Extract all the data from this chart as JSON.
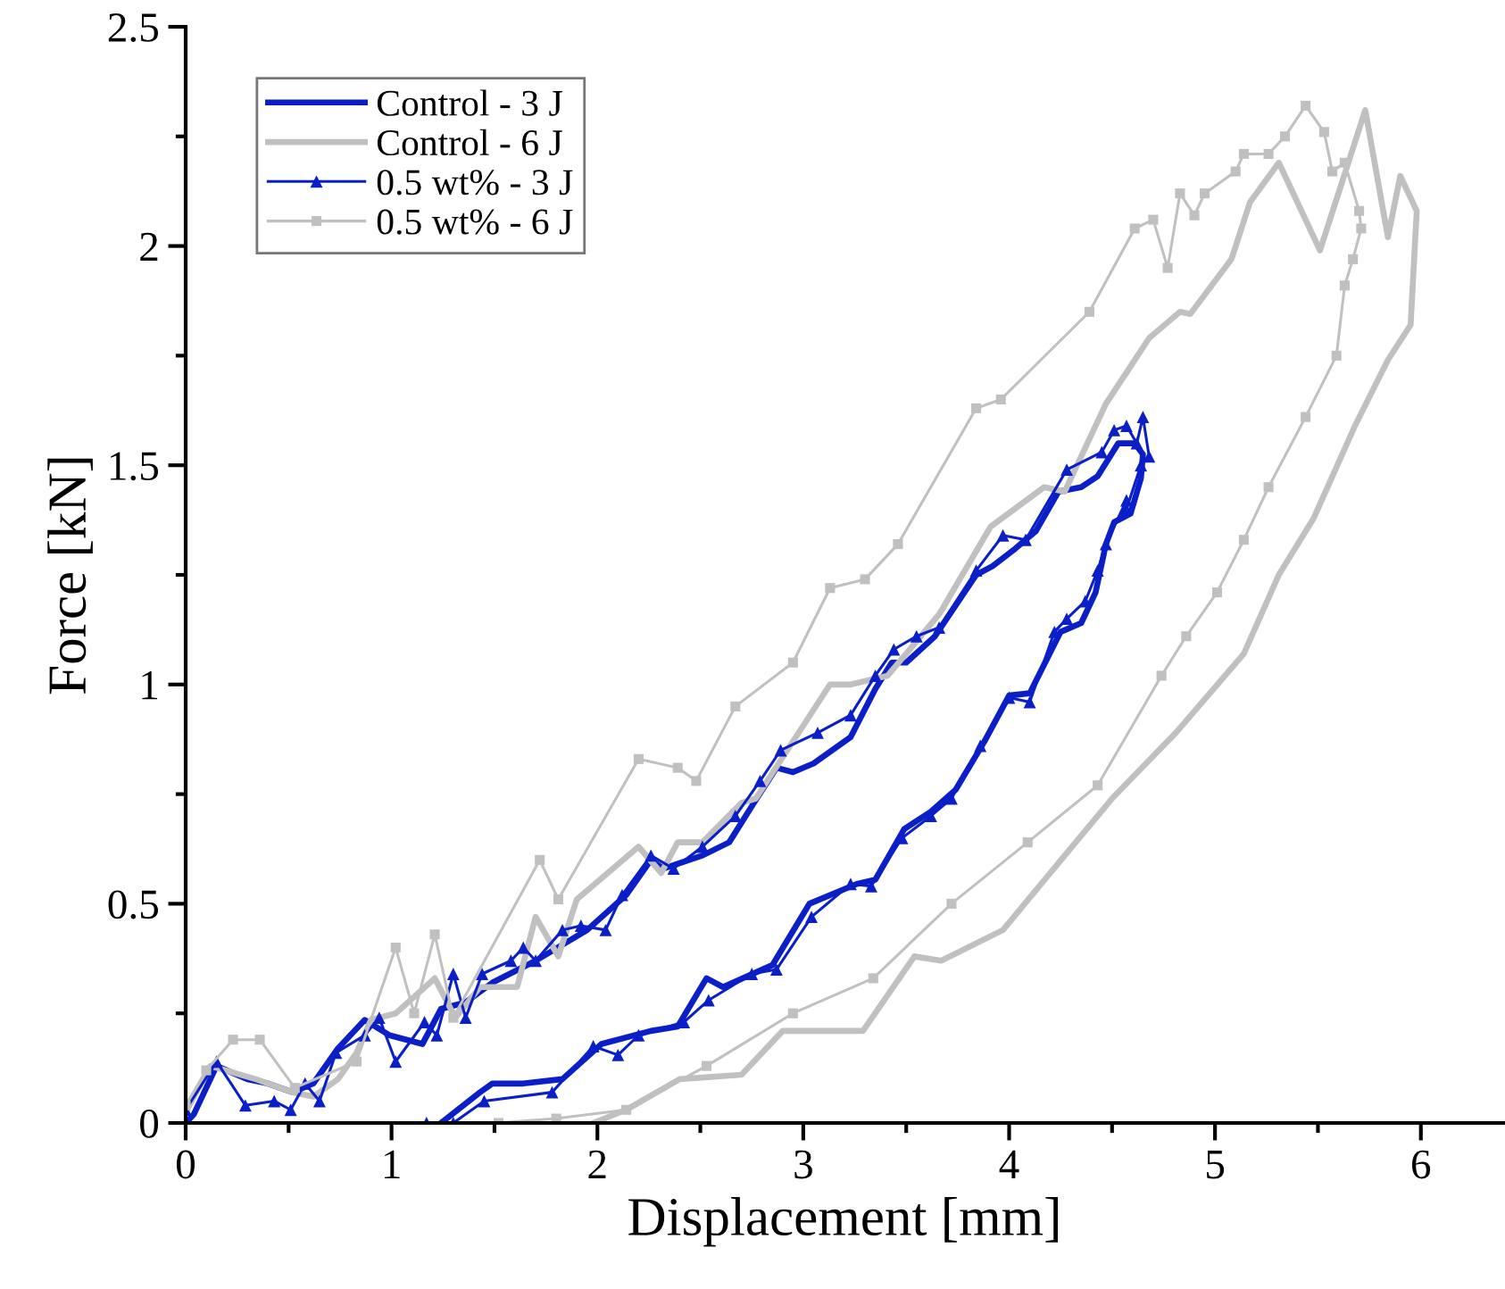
{
  "chart_data": {
    "type": "line",
    "xlabel": "Displacement [mm]",
    "ylabel": "Force [kN]",
    "xlim": [
      0,
      6.4
    ],
    "ylim": [
      0,
      2.5
    ],
    "xticks": [
      0,
      {
        "value": 0.5,
        "label": null
      },
      1,
      {
        "value": 1.5,
        "label": null
      },
      2,
      {
        "value": 2.5,
        "label": null
      },
      3,
      {
        "value": 3.5,
        "label": null
      },
      4,
      {
        "value": 4.5,
        "label": null
      },
      5,
      {
        "value": 5.5,
        "label": null
      },
      6
    ],
    "yticks": [
      0,
      {
        "value": 0.25,
        "label": null
      },
      0.5,
      {
        "value": 0.75,
        "label": null
      },
      1,
      {
        "value": 1.25,
        "label": null
      },
      1.5,
      {
        "value": 1.75,
        "label": null
      },
      2,
      {
        "value": 2.25,
        "label": null
      },
      2.5
    ],
    "grid": false,
    "legend": "top left",
    "series": [
      {
        "name": "Control - 3 J",
        "color": "#0a1fc8",
        "marker": "none",
        "x": [
          0,
          0.04,
          0.15,
          0.3,
          0.4,
          0.52,
          0.62,
          0.74,
          0.87,
          0.99,
          1.15,
          1.24,
          1.36,
          1.49,
          1.7,
          1.95,
          2.14,
          2.26,
          2.32,
          2.51,
          2.64,
          2.76,
          2.87,
          2.95,
          3.05,
          3.23,
          3.35,
          3.43,
          3.5,
          3.64,
          3.84,
          3.92,
          4.03,
          4.13,
          4.24,
          4.35,
          4.43,
          4.53,
          4.61,
          4.65,
          4.64,
          4.59,
          4.51,
          4.47,
          4.42,
          4.35,
          4.25,
          4.1,
          4.0,
          3.88,
          3.74,
          3.62,
          3.49,
          3.35,
          3.26,
          3.03,
          2.85,
          2.61,
          2.53,
          2.39,
          2.26,
          2.02,
          1.83,
          1.64,
          1.49,
          1.43,
          1.24
        ],
        "values": [
          0,
          0.02,
          0.13,
          0.1,
          0.09,
          0.07,
          0.09,
          0.17,
          0.235,
          0.2,
          0.18,
          0.26,
          0.275,
          0.32,
          0.37,
          0.44,
          0.52,
          0.6,
          0.58,
          0.61,
          0.64,
          0.73,
          0.81,
          0.8,
          0.82,
          0.88,
          0.99,
          1.05,
          1.05,
          1.11,
          1.25,
          1.27,
          1.31,
          1.35,
          1.44,
          1.45,
          1.475,
          1.55,
          1.55,
          1.525,
          1.47,
          1.39,
          1.37,
          1.32,
          1.21,
          1.14,
          1.12,
          0.98,
          0.975,
          0.87,
          0.76,
          0.71,
          0.67,
          0.555,
          0.545,
          0.5,
          0.36,
          0.31,
          0.33,
          0.22,
          0.21,
          0.18,
          0.1,
          0.09,
          0.09,
          0.07,
          0
        ]
      },
      {
        "name": "Control - 6 J",
        "color": "#c0c0c0",
        "marker": "none",
        "x": [
          0,
          0.12,
          0.34,
          0.52,
          0.62,
          0.74,
          0.83,
          0.9,
          1.02,
          1.21,
          1.31,
          1.43,
          1.61,
          1.7,
          1.81,
          1.9,
          2.2,
          2.31,
          2.39,
          2.51,
          2.7,
          2.77,
          3.13,
          3.23,
          3.41,
          3.66,
          3.91,
          4.17,
          4.27,
          4.47,
          4.68,
          4.83,
          4.88,
          5.08,
          5.17,
          5.31,
          5.51,
          5.73,
          5.84,
          5.9,
          5.98,
          5.95,
          5.84,
          5.68,
          5.48,
          5.31,
          5.14,
          4.81,
          4.5,
          4.27,
          3.97,
          3.67,
          3.54,
          3.29,
          2.9,
          2.7,
          2.4,
          2.14,
          1.98
        ],
        "values": [
          0.025,
          0.13,
          0.1,
          0.07,
          0.06,
          0.1,
          0.16,
          0.235,
          0.25,
          0.33,
          0.24,
          0.31,
          0.31,
          0.47,
          0.38,
          0.51,
          0.63,
          0.57,
          0.64,
          0.64,
          0.73,
          0.74,
          1.0,
          1.0,
          1.02,
          1.16,
          1.36,
          1.45,
          1.44,
          1.64,
          1.79,
          1.85,
          1.845,
          1.97,
          2.1,
          2.19,
          1.99,
          2.31,
          2.02,
          2.16,
          2.08,
          1.82,
          1.74,
          1.59,
          1.38,
          1.25,
          1.07,
          0.89,
          0.74,
          0.61,
          0.44,
          0.37,
          0.38,
          0.21,
          0.21,
          0.11,
          0.1,
          0.03,
          0
        ]
      },
      {
        "name": "0.5 wt% - 3 J",
        "color": "#0a1fc8",
        "marker": "triangle",
        "x": [
          0,
          0.15,
          0.29,
          0.43,
          0.51,
          0.58,
          0.65,
          0.73,
          0.87,
          0.94,
          1.02,
          1.16,
          1.22,
          1.3,
          1.36,
          1.44,
          1.58,
          1.64,
          1.7,
          1.83,
          1.92,
          2.04,
          2.12,
          2.26,
          2.37,
          2.51,
          2.67,
          2.79,
          2.89,
          3.07,
          3.23,
          3.35,
          3.44,
          3.55,
          3.66,
          3.84,
          3.97,
          4.08,
          4.28,
          4.45,
          4.51,
          4.57,
          4.62,
          4.65,
          4.68,
          4.64,
          4.57,
          4.57,
          4.47,
          4.43,
          4.37,
          4.28,
          4.22,
          4.1,
          4.0,
          3.86,
          3.72,
          3.62,
          3.48,
          3.33,
          3.23,
          3.04,
          2.87,
          2.75,
          2.54,
          2.42,
          2.2,
          2.1,
          1.98,
          1.78,
          1.45,
          1.3,
          1.17
        ],
        "values": [
          0.03,
          0.14,
          0.04,
          0.05,
          0.03,
          0.09,
          0.05,
          0.16,
          0.2,
          0.24,
          0.14,
          0.23,
          0.2,
          0.34,
          0.24,
          0.34,
          0.37,
          0.4,
          0.37,
          0.44,
          0.45,
          0.44,
          0.52,
          0.61,
          0.58,
          0.63,
          0.7,
          0.78,
          0.85,
          0.89,
          0.93,
          1.02,
          1.08,
          1.11,
          1.13,
          1.26,
          1.34,
          1.33,
          1.49,
          1.53,
          1.58,
          1.59,
          1.55,
          1.61,
          1.52,
          1.5,
          1.4,
          1.42,
          1.32,
          1.26,
          1.19,
          1.15,
          1.12,
          0.96,
          0.97,
          0.86,
          0.74,
          0.7,
          0.65,
          0.54,
          0.545,
          0.47,
          0.35,
          0.34,
          0.28,
          0.23,
          0.2,
          0.155,
          0.175,
          0.07,
          0.05,
          0,
          0
        ]
      },
      {
        "name": "0.5 wt% - 6 J",
        "color": "#c0c0c0",
        "marker": "square",
        "x": [
          0,
          0.1,
          0.23,
          0.36,
          0.53,
          0.83,
          1.02,
          1.11,
          1.21,
          1.3,
          1.72,
          1.81,
          2.2,
          2.39,
          2.48,
          2.67,
          2.95,
          3.13,
          3.3,
          3.46,
          3.84,
          3.96,
          4.39,
          4.61,
          4.7,
          4.77,
          4.83,
          4.9,
          4.95,
          5.1,
          5.14,
          5.26,
          5.34,
          5.44,
          5.53,
          5.57,
          5.63,
          5.7,
          5.71,
          5.67,
          5.63,
          5.59,
          5.44,
          5.26,
          5.14,
          5.01,
          4.86,
          4.74,
          4.43,
          4.09,
          3.72,
          3.34,
          2.95,
          2.53,
          2.14,
          1.8,
          1.52
        ],
        "values": [
          0.04,
          0.12,
          0.19,
          0.19,
          0.08,
          0.14,
          0.4,
          0.25,
          0.43,
          0.24,
          0.6,
          0.51,
          0.83,
          0.81,
          0.78,
          0.95,
          1.05,
          1.22,
          1.24,
          1.32,
          1.63,
          1.65,
          1.85,
          2.04,
          2.06,
          1.95,
          2.12,
          2.07,
          2.12,
          2.17,
          2.21,
          2.21,
          2.25,
          2.32,
          2.26,
          2.17,
          2.19,
          2.08,
          2.04,
          1.97,
          1.91,
          1.75,
          1.61,
          1.45,
          1.33,
          1.21,
          1.11,
          1.02,
          0.77,
          0.64,
          0.5,
          0.33,
          0.25,
          0.13,
          0.03,
          0.01,
          0
        ]
      }
    ]
  }
}
